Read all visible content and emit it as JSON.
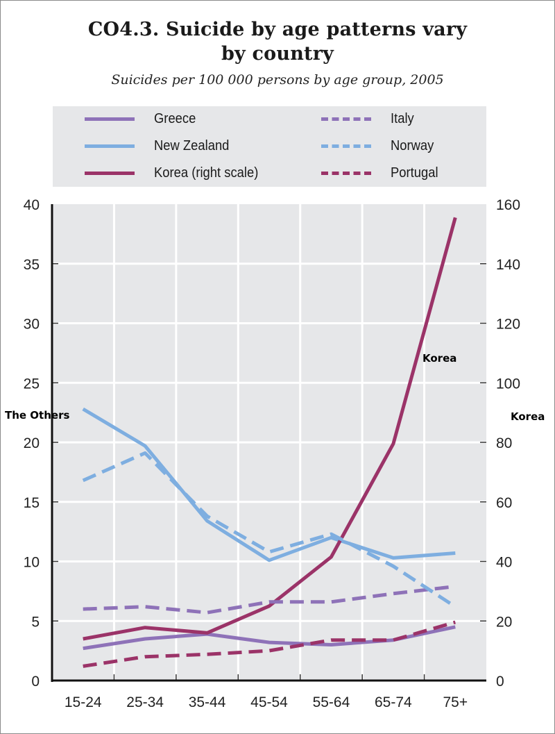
{
  "chart_data": {
    "type": "line",
    "title_line1": "CO4.3.  Suicide by age patterns vary",
    "title_line2": "by country",
    "subtitle": "Suicides per 100 000 persons by age group, 2005",
    "categories": [
      "15-24",
      "25-34",
      "35-44",
      "45-54",
      "55-64",
      "65-74",
      "75+"
    ],
    "left_axis": {
      "ylim": [
        0,
        40
      ],
      "ticks": [
        "0",
        "5",
        "10",
        "15",
        "20",
        "25",
        "30",
        "35",
        "40"
      ]
    },
    "right_axis": {
      "ylim": [
        0,
        160
      ],
      "ticks": [
        "0",
        "20",
        "40",
        "60",
        "80",
        "100",
        "120",
        "140",
        "160"
      ]
    },
    "grid": true,
    "legend_position": "top",
    "series": [
      {
        "name": "Greece",
        "color": "#8e72b8",
        "dash": false,
        "axis": "left",
        "values": [
          2.7,
          3.5,
          3.9,
          3.2,
          3.0,
          3.4,
          4.5
        ]
      },
      {
        "name": "New Zealand",
        "color": "#7eaee0",
        "dash": false,
        "axis": "left",
        "values": [
          22.8,
          19.7,
          13.4,
          10.1,
          12.0,
          10.3,
          10.7
        ]
      },
      {
        "name": "Korea (right scale)",
        "color": "#9b3368",
        "dash": false,
        "axis": "right",
        "values": [
          14.0,
          17.8,
          16.0,
          25.0,
          41.5,
          79.5,
          155.5
        ]
      },
      {
        "name": "Italy",
        "color": "#8e72b8",
        "dash": true,
        "axis": "left",
        "values": [
          6.0,
          6.2,
          5.7,
          6.6,
          6.6,
          7.3,
          7.9
        ]
      },
      {
        "name": "Norway",
        "color": "#7eaee0",
        "dash": true,
        "axis": "left",
        "values": [
          16.8,
          19.1,
          13.8,
          10.8,
          12.3,
          9.6,
          6.2
        ]
      },
      {
        "name": "Portugal",
        "color": "#9b3368",
        "dash": true,
        "axis": "left",
        "values": [
          1.2,
          2.0,
          2.2,
          2.5,
          3.4,
          3.4,
          4.9
        ]
      }
    ],
    "annotations": [
      {
        "text": "The Others"
      },
      {
        "text": "Korea"
      },
      {
        "text": "Korea"
      }
    ]
  },
  "legend": {
    "items": [
      {
        "label": "Greece"
      },
      {
        "label": "New Zealand"
      },
      {
        "label": "Korea (right scale)"
      },
      {
        "label": "Italy"
      },
      {
        "label": "Norway"
      },
      {
        "label": "Portugal"
      }
    ]
  },
  "colors": {
    "plot_background": "#e6e7e9",
    "grid": "#ffffff",
    "axis": "#111111"
  }
}
